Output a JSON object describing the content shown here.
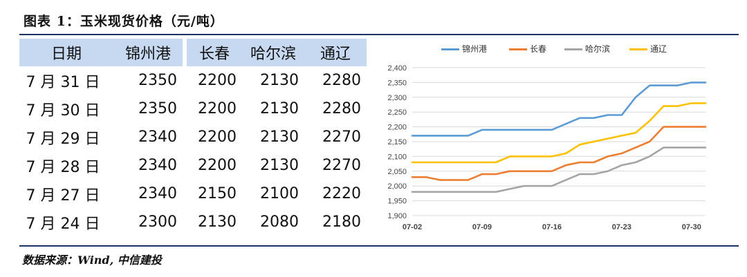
{
  "title": "图表 1：玉米现货价格（元/吨）",
  "source": "数据来源：Wind, 中信建投",
  "table": {
    "headers": [
      "日期",
      "锦州港",
      "长春",
      "哈尔滨",
      "通辽"
    ],
    "rows": [
      [
        "7 月 31 日",
        "2350",
        "2200",
        "2130",
        "2280"
      ],
      [
        "7 月 30 日",
        "2350",
        "2200",
        "2130",
        "2280"
      ],
      [
        "7 月 29 日",
        "2340",
        "2200",
        "2130",
        "2270"
      ],
      [
        "7 月 28 日",
        "2340",
        "2200",
        "2130",
        "2270"
      ],
      [
        "7 月 27 日",
        "2340",
        "2150",
        "2100",
        "2220"
      ],
      [
        "7 月 24 日",
        "2300",
        "2130",
        "2080",
        "2180"
      ]
    ]
  },
  "chart_data": {
    "type": "line",
    "ylim": [
      1900,
      2400
    ],
    "yticks": [
      "1,900",
      "1,950",
      "2,000",
      "2,050",
      "2,100",
      "2,150",
      "2,200",
      "2,250",
      "2,300",
      "2,350",
      "2,400"
    ],
    "xticks": [
      "07-02",
      "07-09",
      "07-16",
      "07-23",
      "07-30"
    ],
    "legend_position": "top",
    "grid": true,
    "x": [
      "07-02",
      "07-03",
      "07-06",
      "07-07",
      "07-08",
      "07-09",
      "07-10",
      "07-13",
      "07-14",
      "07-15",
      "07-16",
      "07-17",
      "07-20",
      "07-21",
      "07-22",
      "07-23",
      "07-24",
      "07-27",
      "07-28",
      "07-29",
      "07-30",
      "07-31"
    ],
    "series": [
      {
        "name": "锦州港",
        "color": "#5b9bd5",
        "values": [
          2170,
          2170,
          2170,
          2170,
          2170,
          2190,
          2190,
          2190,
          2190,
          2190,
          2190,
          2210,
          2230,
          2230,
          2240,
          2240,
          2300,
          2340,
          2340,
          2340,
          2350,
          2350
        ]
      },
      {
        "name": "长春",
        "color": "#ed7d31",
        "values": [
          2030,
          2030,
          2020,
          2020,
          2020,
          2040,
          2040,
          2050,
          2050,
          2050,
          2050,
          2070,
          2080,
          2080,
          2100,
          2110,
          2130,
          2150,
          2200,
          2200,
          2200,
          2200
        ]
      },
      {
        "name": "哈尔滨",
        "color": "#a5a5a5",
        "values": [
          1980,
          1980,
          1980,
          1980,
          1980,
          1980,
          1980,
          1990,
          2000,
          2000,
          2000,
          2020,
          2040,
          2040,
          2050,
          2070,
          2080,
          2100,
          2130,
          2130,
          2130,
          2130
        ]
      },
      {
        "name": "通辽",
        "color": "#ffc000",
        "values": [
          2080,
          2080,
          2080,
          2080,
          2080,
          2080,
          2080,
          2100,
          2100,
          2100,
          2100,
          2110,
          2140,
          2150,
          2160,
          2170,
          2180,
          2220,
          2270,
          2270,
          2280,
          2280
        ]
      }
    ]
  }
}
